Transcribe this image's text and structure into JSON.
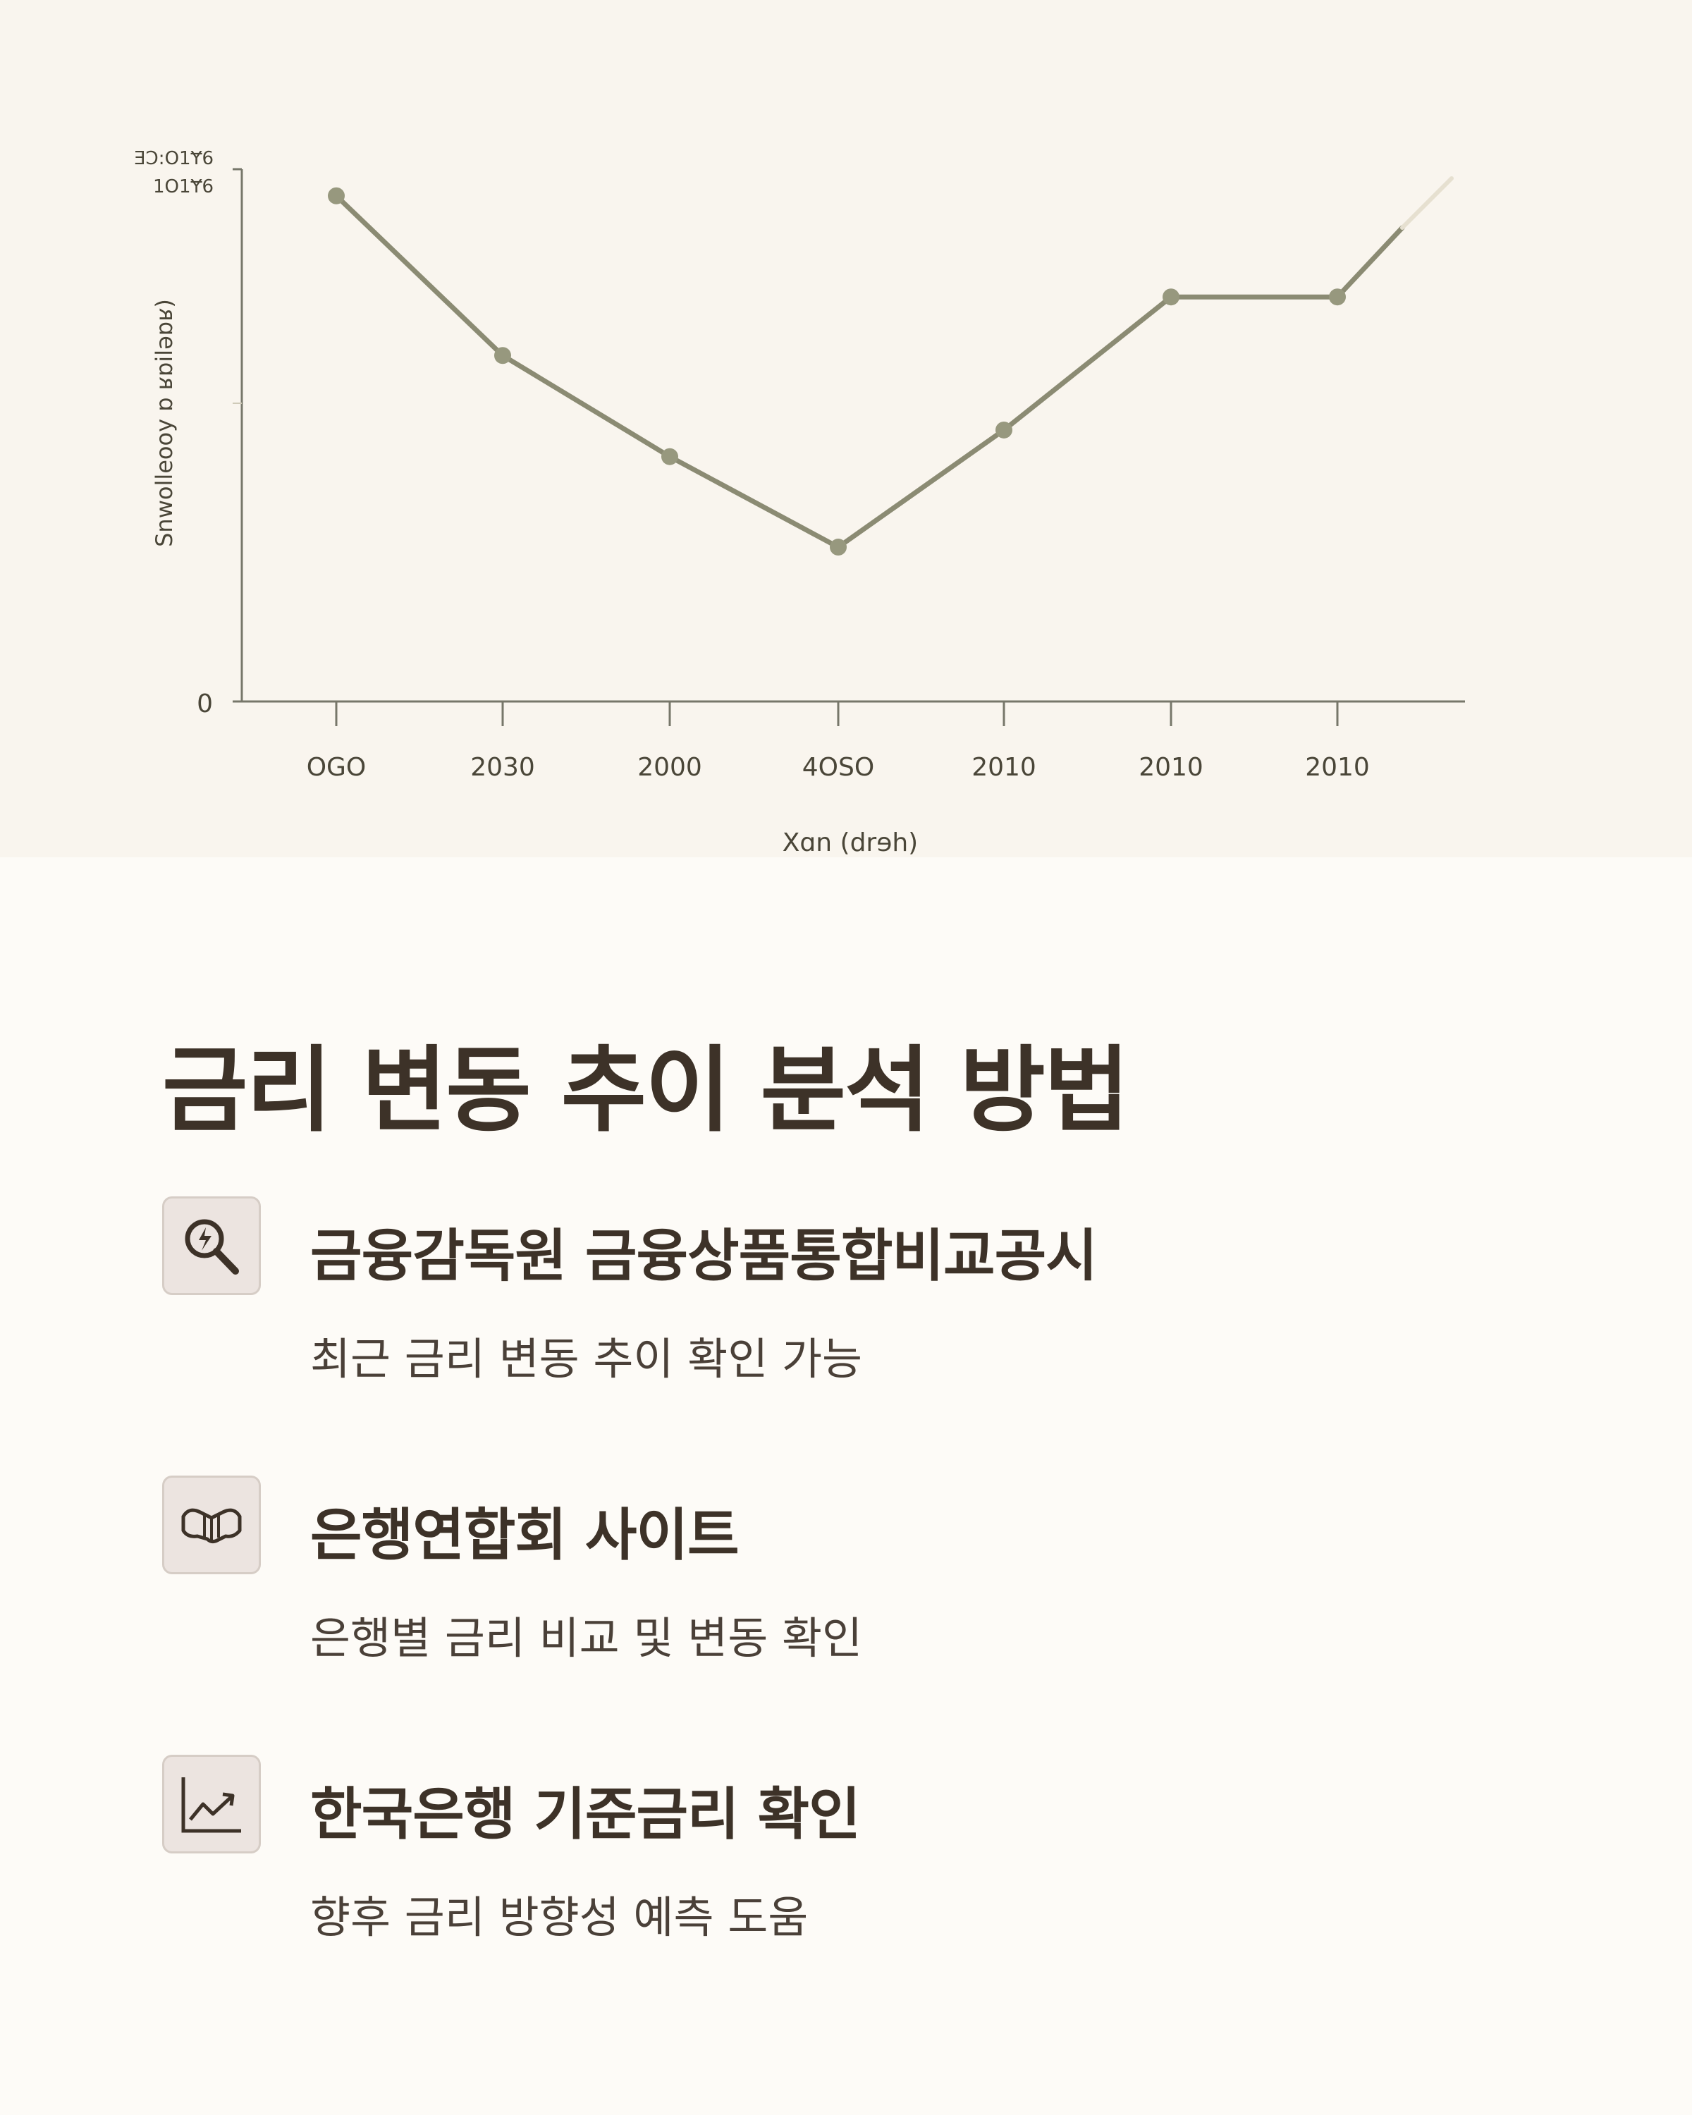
{
  "chart_data": {
    "type": "line",
    "ylabel_text": "Snwolleooy ɒ ʁɒiləɒʁ)",
    "ytick_top_lines": [
      "ƎƆ:O1Ɏ6",
      "1O1Ɏ6"
    ],
    "ytick_zero": "0",
    "xlabel": "Xɑn (drɘh)",
    "categories": [
      "OGO",
      "2030",
      "2000",
      "4OSO",
      "2010",
      "2010",
      "2010"
    ],
    "values": [
      95,
      65,
      46,
      29,
      51,
      76,
      76
    ],
    "extension_value": 89,
    "ylim": [
      0,
      100
    ],
    "grid": false,
    "line_color": "#8b8b73",
    "marker_color": "#97987e"
  },
  "heading": {
    "title": "금리 변동 추이 분석 방법"
  },
  "items": [
    {
      "icon": "magnifier-lightning-icon",
      "title": "금융감독원 금융상품통합비교공시",
      "desc": "최근 금리 변동 추이 확인 가능"
    },
    {
      "icon": "handshake-icon",
      "title": "은행연합회 사이트",
      "desc": "은행별 금리 비교 및 변동 확인"
    },
    {
      "icon": "line-chart-icon",
      "title": "한국은행 기준금리 확인",
      "desc": "향후 금리 방향성 예측 도움"
    }
  ],
  "colors": {
    "title_text": "#3d3228",
    "body_text": "#4a4038",
    "icon_box": "#ece4e0",
    "background": "#fdfbf7",
    "chart_background": "#f9f5ee"
  }
}
